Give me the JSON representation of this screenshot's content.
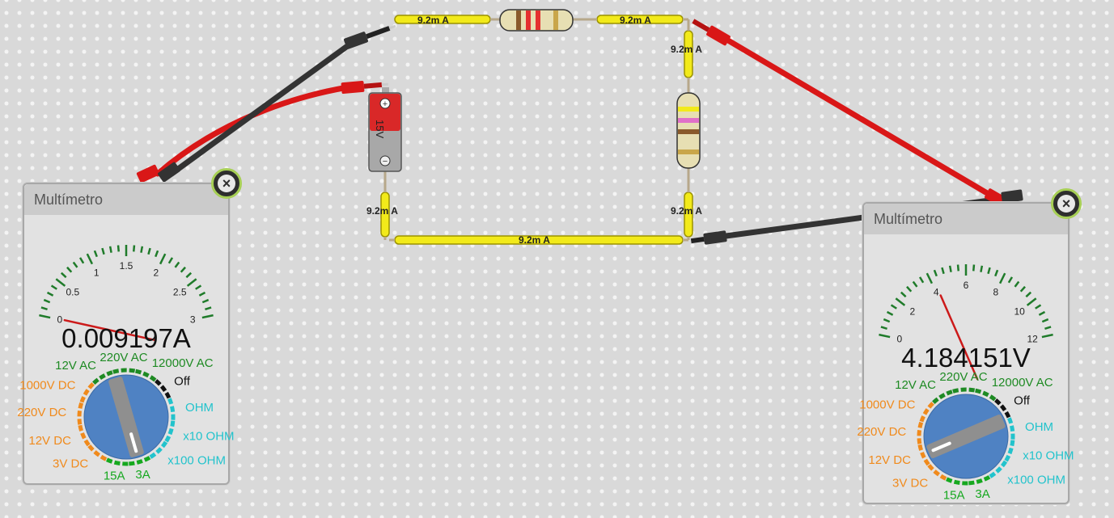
{
  "circuit": {
    "current_labels": [
      "9.2m A",
      "9.2m A",
      "9.2m A",
      "9.2m A",
      "9.2m A",
      "9.2m A"
    ],
    "battery_label": "15V",
    "battery_plus": "+",
    "battery_minus": "−"
  },
  "meter_left": {
    "title": "Multímetro",
    "reading": "0.009197A",
    "scale": {
      "labels": [
        "0",
        "0.5",
        "1",
        "1.5",
        "2",
        "2.5",
        "3"
      ],
      "min": 0,
      "max": 3,
      "needle_value": 0.009
    },
    "selector": {
      "selected": "3A",
      "positions": [
        "12V AC",
        "220V AC",
        "12000V AC",
        "Off",
        "OHM",
        "x10 OHM",
        "x100 OHM",
        "3A",
        "15A",
        "3V DC",
        "12V DC",
        "220V DC",
        "1000V DC"
      ]
    }
  },
  "meter_right": {
    "title": "Multímetro",
    "reading": "4.184151V",
    "scale": {
      "labels": [
        "0",
        "2",
        "4",
        "6",
        "8",
        "10",
        "12"
      ],
      "min": 0,
      "max": 12,
      "needle_value": 4.18
    },
    "selector": {
      "selected": "12V DC",
      "positions": [
        "12V AC",
        "220V AC",
        "12000V AC",
        "Off",
        "OHM",
        "x10 OHM",
        "x100 OHM",
        "3A",
        "15A",
        "3V DC",
        "12V DC",
        "220V DC",
        "1000V DC"
      ]
    }
  },
  "colors": {
    "wire_fill": "#f2ea1a",
    "wire_border": "#9b9200",
    "probe_red": "#d91717",
    "probe_black": "#333333",
    "dial_blue": "#4f82c3",
    "ac_green": "#1e8a23",
    "dc_orange": "#f08a1c",
    "ohm_cyan": "#22c3cc",
    "amp_green": "#16a81f"
  }
}
